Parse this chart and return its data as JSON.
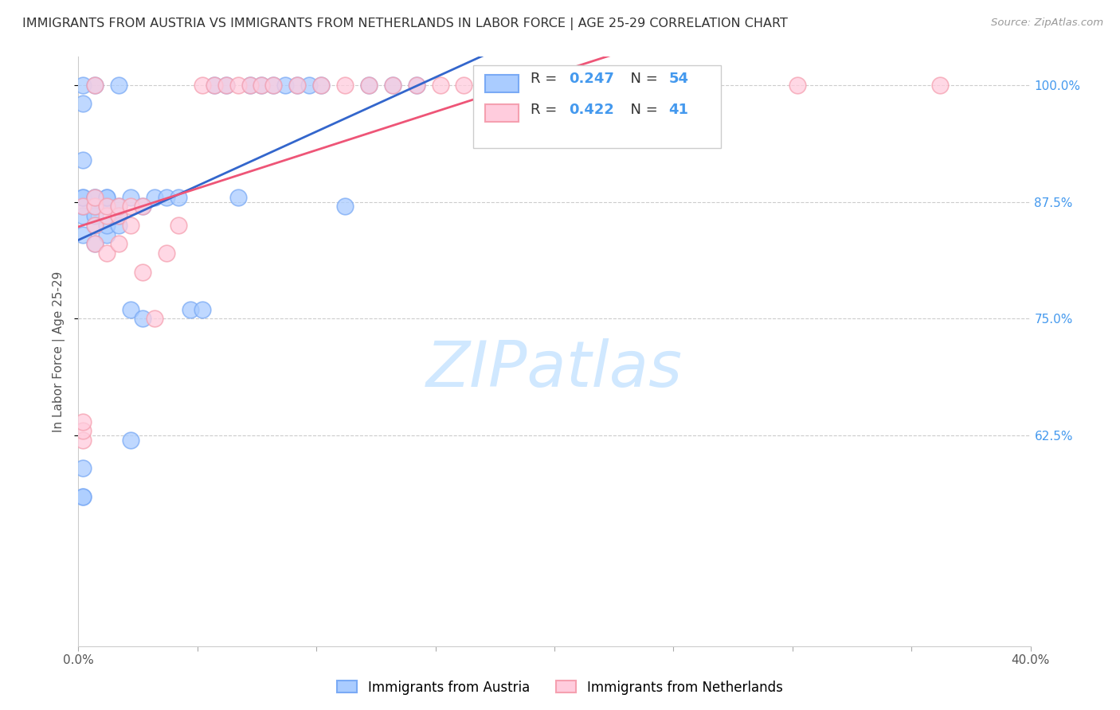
{
  "title": "IMMIGRANTS FROM AUSTRIA VS IMMIGRANTS FROM NETHERLANDS IN LABOR FORCE | AGE 25-29 CORRELATION CHART",
  "source": "Source: ZipAtlas.com",
  "ylabel": "In Labor Force | Age 25-29",
  "xlim": [
    0.0,
    0.4
  ],
  "ylim": [
    0.4,
    1.03
  ],
  "xticks": [
    0.0,
    0.05,
    0.1,
    0.15,
    0.2,
    0.25,
    0.3,
    0.35,
    0.4
  ],
  "xticklabels": [
    "0.0%",
    "",
    "",
    "",
    "",
    "",
    "",
    "",
    "40.0%"
  ],
  "yticks": [
    0.625,
    0.75,
    0.875,
    1.0
  ],
  "yticklabels": [
    "62.5%",
    "75.0%",
    "87.5%",
    "100.0%"
  ],
  "austria_color": "#7aaaf5",
  "austria_face": "#aaccff",
  "netherlands_color": "#f5a0b0",
  "netherlands_face": "#ffccdd",
  "austria_line_color": "#3366cc",
  "netherlands_line_color": "#ee5577",
  "austria_R": 0.247,
  "austria_N": 54,
  "netherlands_R": 0.422,
  "netherlands_N": 41,
  "right_tick_color": "#4499ee",
  "grid_color": "#cccccc",
  "watermark_color": "#d0e8ff",
  "austria_x": [
    0.002,
    0.002,
    0.002,
    0.002,
    0.002,
    0.002,
    0.002,
    0.002,
    0.002,
    0.002,
    0.002,
    0.007,
    0.007,
    0.007,
    0.007,
    0.007,
    0.007,
    0.007,
    0.012,
    0.012,
    0.012,
    0.012,
    0.012,
    0.017,
    0.017,
    0.017,
    0.017,
    0.022,
    0.022,
    0.022,
    0.027,
    0.027,
    0.032,
    0.037,
    0.042,
    0.047,
    0.052,
    0.057,
    0.062,
    0.067,
    0.072,
    0.077,
    0.082,
    0.087,
    0.092,
    0.097,
    0.102,
    0.112,
    0.122,
    0.132,
    0.142,
    0.172,
    0.182,
    0.192
  ],
  "austria_y": [
    0.56,
    0.56,
    0.59,
    0.84,
    0.86,
    0.87,
    0.88,
    0.88,
    0.92,
    0.98,
    1.0,
    0.83,
    0.85,
    0.86,
    0.87,
    0.88,
    0.88,
    1.0,
    0.84,
    0.85,
    0.87,
    0.88,
    0.88,
    0.85,
    0.86,
    0.87,
    1.0,
    0.62,
    0.76,
    0.88,
    0.75,
    0.87,
    0.88,
    0.88,
    0.88,
    0.76,
    0.76,
    1.0,
    1.0,
    0.88,
    1.0,
    1.0,
    1.0,
    1.0,
    1.0,
    1.0,
    1.0,
    0.87,
    1.0,
    1.0,
    1.0,
    1.0,
    1.0,
    1.0
  ],
  "netherlands_x": [
    0.002,
    0.002,
    0.002,
    0.002,
    0.007,
    0.007,
    0.007,
    0.007,
    0.007,
    0.012,
    0.012,
    0.012,
    0.017,
    0.017,
    0.017,
    0.022,
    0.022,
    0.027,
    0.027,
    0.032,
    0.037,
    0.042,
    0.052,
    0.057,
    0.062,
    0.067,
    0.072,
    0.077,
    0.082,
    0.092,
    0.102,
    0.112,
    0.122,
    0.132,
    0.142,
    0.152,
    0.162,
    0.172,
    0.182,
    0.302,
    0.362
  ],
  "netherlands_y": [
    0.62,
    0.63,
    0.64,
    0.87,
    0.83,
    0.85,
    0.87,
    0.88,
    1.0,
    0.82,
    0.86,
    0.87,
    0.83,
    0.86,
    0.87,
    0.85,
    0.87,
    0.8,
    0.87,
    0.75,
    0.82,
    0.85,
    1.0,
    1.0,
    1.0,
    1.0,
    1.0,
    1.0,
    1.0,
    1.0,
    1.0,
    1.0,
    1.0,
    1.0,
    1.0,
    1.0,
    1.0,
    1.0,
    1.0,
    1.0,
    1.0
  ]
}
